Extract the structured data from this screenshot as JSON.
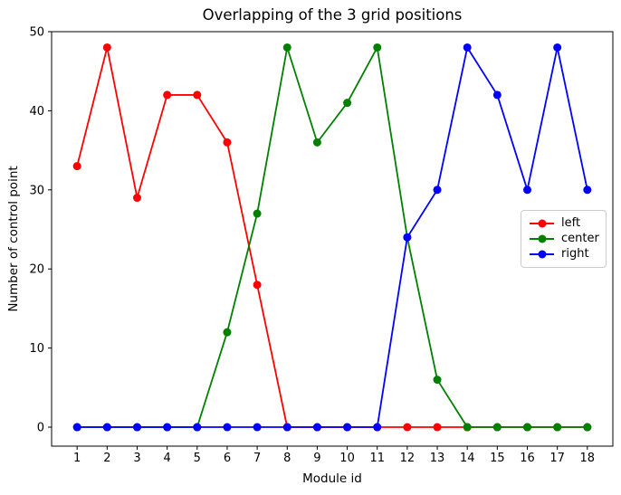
{
  "chart_data": {
    "type": "line",
    "title": "Overlapping of the 3 grid positions",
    "xlabel": "Module id",
    "ylabel": "Number of control point",
    "x": [
      1,
      2,
      3,
      4,
      5,
      6,
      7,
      8,
      9,
      10,
      11,
      12,
      13,
      14,
      15,
      16,
      17,
      18
    ],
    "series": [
      {
        "name": "left",
        "color": "#ff0000",
        "values": [
          33,
          48,
          29,
          42,
          42,
          36,
          18,
          0,
          0,
          0,
          0,
          0,
          0,
          0,
          0,
          0,
          0,
          0
        ]
      },
      {
        "name": "center",
        "color": "#008000",
        "values": [
          0,
          0,
          0,
          0,
          0,
          12,
          27,
          48,
          36,
          41,
          48,
          24,
          6,
          0,
          0,
          0,
          0,
          0
        ]
      },
      {
        "name": "right",
        "color": "#0000ff",
        "values": [
          0,
          0,
          0,
          0,
          0,
          0,
          0,
          0,
          0,
          0,
          0,
          24,
          30,
          48,
          42,
          30,
          48,
          30
        ]
      }
    ],
    "xticks": [
      1,
      2,
      3,
      4,
      5,
      6,
      7,
      8,
      9,
      10,
      11,
      12,
      13,
      14,
      15,
      16,
      17,
      18
    ],
    "yticks": [
      0,
      10,
      20,
      30,
      40,
      50
    ],
    "xlim": [
      0.15,
      18.85
    ],
    "ylim": [
      -2.4,
      50
    ],
    "grid": false,
    "marker": "o",
    "legend_position": "center right",
    "axis_color": "#000000"
  }
}
